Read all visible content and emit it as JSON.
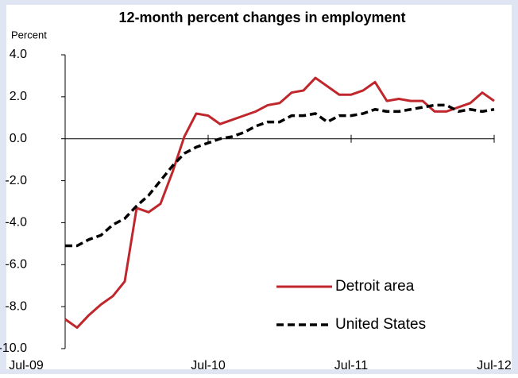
{
  "chart_data": {
    "type": "line",
    "title": "12-month percent changes in employment",
    "y_label": "Percent",
    "categories": [
      "Jul-09",
      null,
      null,
      null,
      null,
      null,
      null,
      null,
      null,
      null,
      null,
      null,
      "Jul-10",
      null,
      null,
      null,
      null,
      null,
      null,
      null,
      null,
      null,
      null,
      null,
      "Jul-11",
      null,
      null,
      null,
      null,
      null,
      null,
      null,
      null,
      null,
      null,
      null,
      "Jul-12"
    ],
    "series": [
      {
        "name": "Detroit area",
        "color": "#c0272d",
        "dash": false,
        "values": [
          -8.6,
          -9.0,
          -8.4,
          -7.9,
          -7.5,
          -6.8,
          -3.3,
          -3.5,
          -3.1,
          -1.6,
          0.1,
          1.2,
          1.1,
          0.7,
          0.9,
          1.1,
          1.3,
          1.6,
          1.7,
          2.2,
          2.3,
          2.9,
          2.5,
          2.1,
          2.1,
          2.3,
          2.7,
          1.8,
          1.9,
          1.8,
          1.8,
          1.3,
          1.3,
          1.5,
          1.7,
          2.2,
          1.8
        ]
      },
      {
        "name": "United States",
        "color": "#000000",
        "dash": true,
        "values": [
          -5.1,
          -5.1,
          -4.8,
          -4.6,
          -4.1,
          -3.8,
          -3.2,
          -2.7,
          -2.0,
          -1.3,
          -0.7,
          -0.4,
          -0.2,
          0.0,
          0.1,
          0.3,
          0.6,
          0.8,
          0.8,
          1.1,
          1.1,
          1.2,
          0.8,
          1.1,
          1.1,
          1.2,
          1.4,
          1.3,
          1.3,
          1.4,
          1.5,
          1.6,
          1.6,
          1.3,
          1.4,
          1.3,
          1.4
        ]
      }
    ],
    "ylim": [
      -10,
      4
    ],
    "yticks": [
      {
        "value": -10,
        "label": "-10.0"
      },
      {
        "value": -8,
        "label": "-8.0"
      },
      {
        "value": -6,
        "label": "-6.0"
      },
      {
        "value": -4,
        "label": "-4.0"
      },
      {
        "value": -2,
        "label": "-2.0"
      },
      {
        "value": 0,
        "label": "0.0"
      },
      {
        "value": 2,
        "label": "2.0"
      },
      {
        "value": 4,
        "label": "4.0"
      }
    ],
    "grid": false,
    "legend": "lower right"
  }
}
